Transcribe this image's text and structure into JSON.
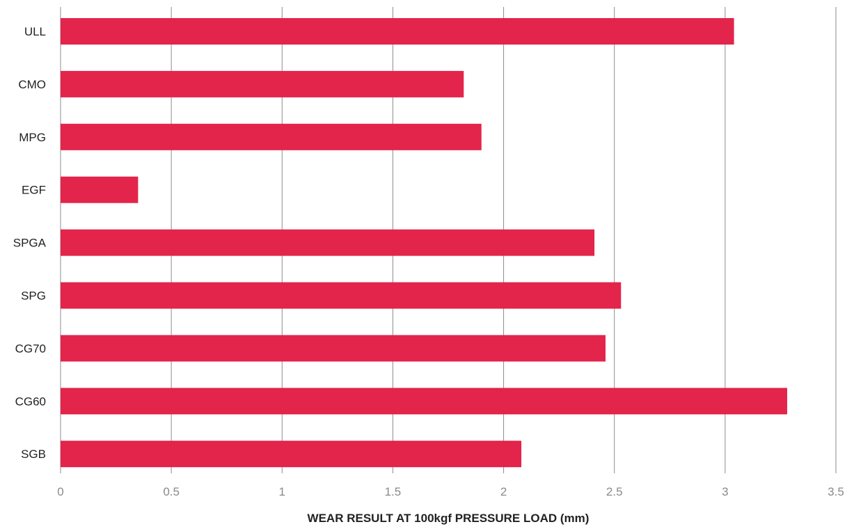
{
  "chart_data": {
    "type": "bar",
    "orientation": "horizontal",
    "categories": [
      "ULL",
      "CMO",
      "MPG",
      "EGF",
      "SPGA",
      "SPG",
      "CG70",
      "CG60",
      "SGB"
    ],
    "values": [
      3.04,
      1.82,
      1.9,
      0.35,
      2.41,
      2.53,
      2.46,
      3.28,
      2.08
    ],
    "xlabel": "WEAR RESULT AT 100kgf PRESSURE LOAD (mm)",
    "ylabel": "",
    "xlim": [
      0,
      3.5
    ],
    "xticks": [
      "0",
      "0.5",
      "1",
      "1.5",
      "2",
      "2.5",
      "3",
      "3.5"
    ],
    "grid": true,
    "bar_color": "#e3244b"
  }
}
